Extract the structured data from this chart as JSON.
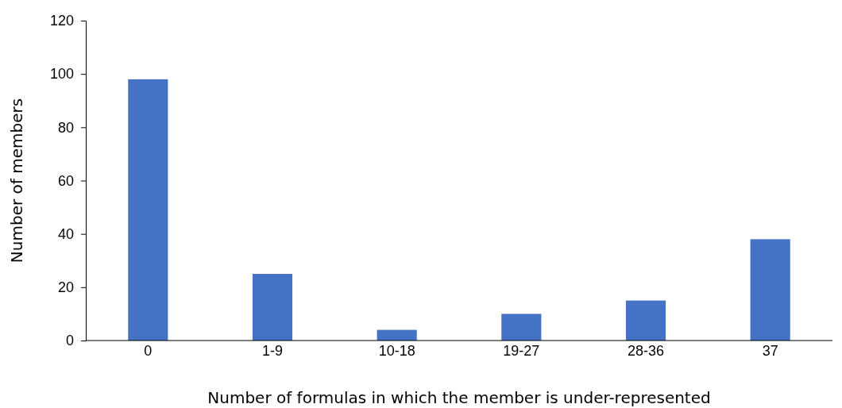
{
  "chart_data": {
    "type": "bar",
    "xlabel": "Number of formulas in which the member is under-represented",
    "ylabel": "Number of members",
    "categories": [
      "0",
      "1-9",
      "10-18",
      "19-27",
      "28-36",
      "37"
    ],
    "values": [
      98,
      25,
      4,
      10,
      15,
      38
    ],
    "color": "#4472c4",
    "ylim": [
      0,
      120
    ],
    "yticks": [
      0,
      20,
      40,
      60,
      80,
      100,
      120
    ],
    "grid": false
  }
}
